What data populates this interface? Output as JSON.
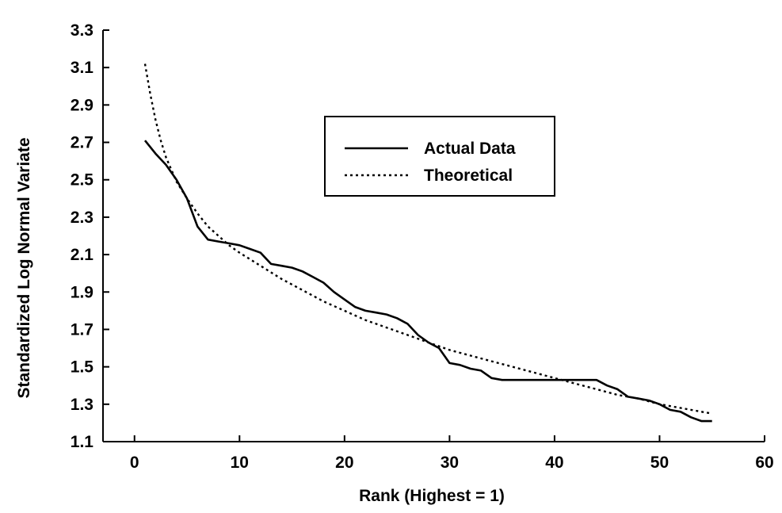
{
  "chart_data": {
    "type": "line",
    "title": "",
    "xlabel": "Rank (Highest = 1)",
    "ylabel": "Standardized Log Normal Variate",
    "xlim": [
      -3,
      60
    ],
    "ylim": [
      1.1,
      3.3
    ],
    "xticks": [
      0,
      10,
      20,
      30,
      40,
      50,
      60
    ],
    "yticks": [
      1.1,
      1.3,
      1.5,
      1.7,
      1.9,
      2.1,
      2.3,
      2.5,
      2.7,
      2.9,
      3.1,
      3.3
    ],
    "xtick_labels": [
      "0",
      "10",
      "20",
      "30",
      "40",
      "50",
      "60"
    ],
    "ytick_labels": [
      "1.1",
      "1.3",
      "1.5",
      "1.7",
      "1.9",
      "2.1",
      "2.3",
      "2.5",
      "2.7",
      "2.9",
      "3.1",
      "3.3"
    ],
    "grid": false,
    "legend_position": "upper-center",
    "series": [
      {
        "name": "Actual Data",
        "style": "solid",
        "color": "#000000",
        "x": [
          1,
          2,
          3,
          4,
          5,
          6,
          7,
          8,
          9,
          10,
          11,
          12,
          13,
          14,
          15,
          16,
          17,
          18,
          19,
          20,
          21,
          22,
          23,
          24,
          25,
          26,
          27,
          28,
          29,
          30,
          31,
          32,
          33,
          34,
          35,
          36,
          37,
          38,
          39,
          40,
          41,
          42,
          43,
          44,
          45,
          46,
          47,
          48,
          49,
          50,
          51,
          52,
          53,
          54,
          55
        ],
        "y": [
          2.71,
          2.64,
          2.58,
          2.5,
          2.4,
          2.25,
          2.18,
          2.17,
          2.16,
          2.15,
          2.13,
          2.11,
          2.05,
          2.04,
          2.03,
          2.01,
          1.98,
          1.95,
          1.9,
          1.86,
          1.82,
          1.8,
          1.79,
          1.78,
          1.76,
          1.73,
          1.67,
          1.63,
          1.6,
          1.52,
          1.51,
          1.49,
          1.48,
          1.44,
          1.43,
          1.43,
          1.43,
          1.43,
          1.43,
          1.43,
          1.43,
          1.43,
          1.43,
          1.43,
          1.4,
          1.38,
          1.34,
          1.33,
          1.32,
          1.3,
          1.27,
          1.26,
          1.23,
          1.21,
          1.21
        ]
      },
      {
        "name": "Theoretical",
        "style": "dotted",
        "color": "#000000",
        "x": [
          1,
          1.5,
          2,
          2.5,
          3,
          4,
          5,
          6,
          7,
          8,
          9,
          10,
          12,
          14,
          16,
          18,
          20,
          22,
          24,
          26,
          28,
          30,
          32,
          34,
          36,
          38,
          40,
          42,
          44,
          46,
          48,
          50,
          52,
          54,
          55
        ],
        "y": [
          3.12,
          2.96,
          2.82,
          2.71,
          2.62,
          2.49,
          2.4,
          2.32,
          2.25,
          2.2,
          2.15,
          2.11,
          2.04,
          1.97,
          1.91,
          1.85,
          1.8,
          1.75,
          1.71,
          1.67,
          1.63,
          1.59,
          1.56,
          1.53,
          1.5,
          1.47,
          1.44,
          1.41,
          1.38,
          1.35,
          1.33,
          1.3,
          1.28,
          1.26,
          1.25
        ]
      }
    ]
  }
}
